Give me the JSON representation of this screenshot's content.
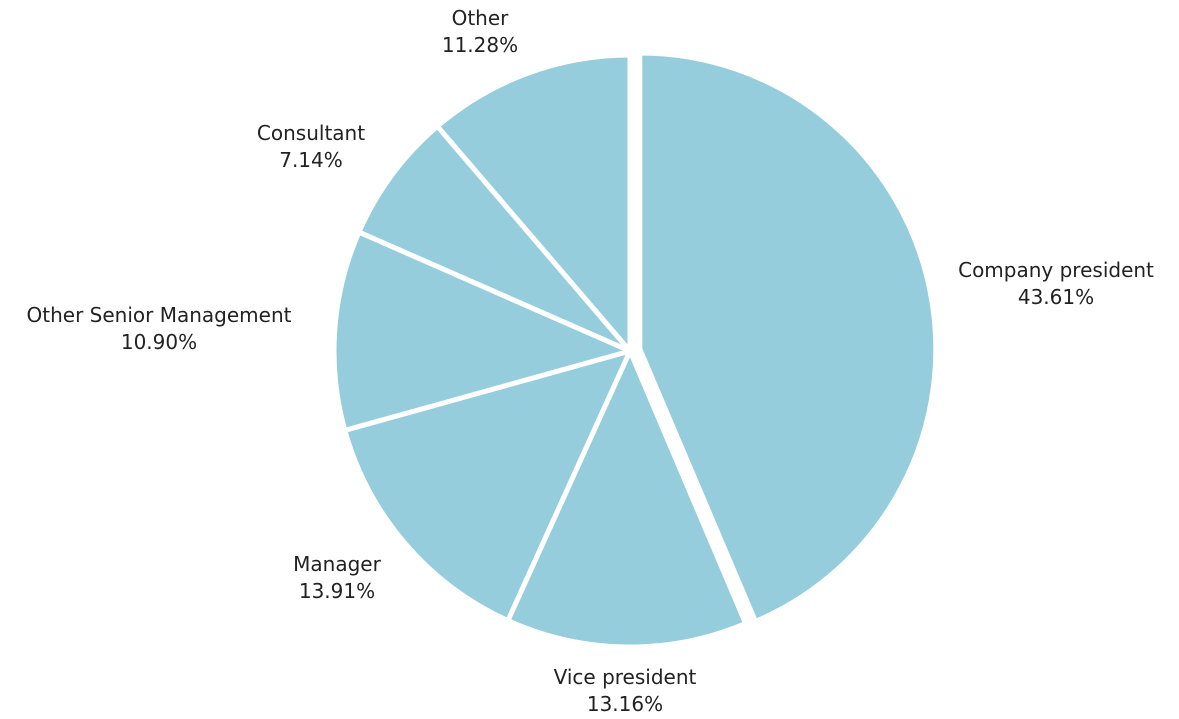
{
  "chart_data": {
    "type": "pie",
    "title": "",
    "slice_color": "#96cddc",
    "separator_color": "#ffffff",
    "start_angle_deg": 0,
    "direction": "clockwise",
    "slices": [
      {
        "label": "Company president",
        "value": 43.61,
        "percent_text": "43.61%"
      },
      {
        "label": "Vice president",
        "value": 13.16,
        "percent_text": "13.16%"
      },
      {
        "label": "Manager",
        "value": 13.91,
        "percent_text": "13.91%"
      },
      {
        "label": "Other Senior Management",
        "value": 10.9,
        "percent_text": "10.90%"
      },
      {
        "label": "Consultant",
        "value": 7.14,
        "percent_text": "7.14%"
      },
      {
        "label": "Other",
        "value": 11.28,
        "percent_text": "11.28%"
      }
    ]
  }
}
